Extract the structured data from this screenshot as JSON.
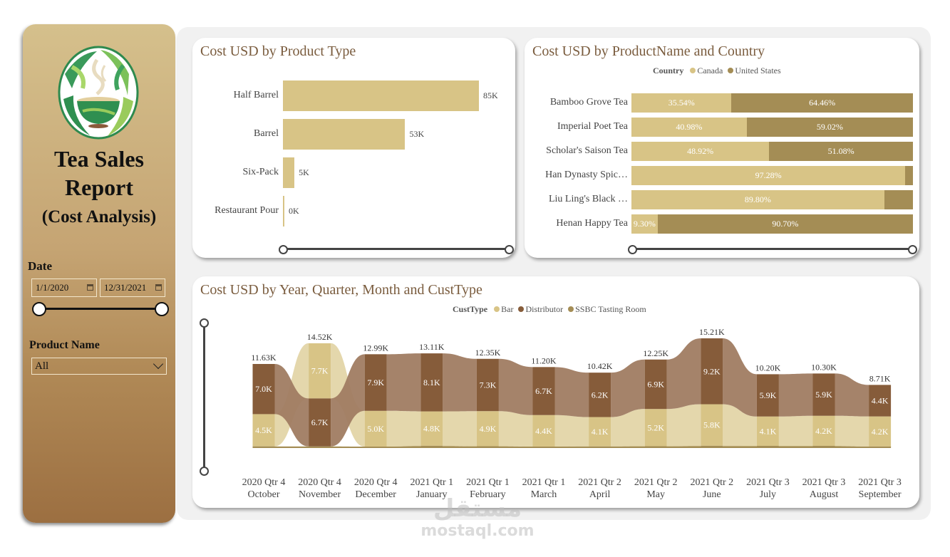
{
  "sidebar": {
    "title_line1": "Tea Sales",
    "title_line2": "Report",
    "title_line3": "(Cost Analysis)",
    "date_label": "Date",
    "date_start": "1/1/2020",
    "date_end": "12/31/2021",
    "product_label": "Product Name",
    "product_selected": "All"
  },
  "colors": {
    "bar": "#d8c486",
    "canada": "#d8c486",
    "united_states": "#a48d55",
    "cust_bar": "#d8c486",
    "cust_distributor": "#865c3a",
    "cust_ssbc": "#a48d55",
    "ribbon_bar": "#e3d5a8",
    "ribbon_distributor": "#a07c62",
    "ribbon_ssbc": "#b8a36a"
  },
  "chart_data": [
    {
      "type": "bar",
      "title": "Cost USD by Product Type",
      "orientation": "horizontal",
      "categories": [
        "Half Barrel",
        "Barrel",
        "Six-Pack",
        "Restaurant Pour"
      ],
      "values": [
        85,
        53,
        5,
        0.3
      ],
      "value_labels": [
        "85K",
        "53K",
        "5K",
        "0K"
      ],
      "units": "K USD",
      "xlim": [
        0,
        85
      ]
    },
    {
      "type": "bar",
      "stacked": "100%",
      "orientation": "horizontal",
      "title": "Cost USD by ProductName and Country",
      "legend_title": "Country",
      "legend": [
        "Canada",
        "United States"
      ],
      "legend_position": "top-center",
      "categories": [
        "Bamboo Grove Tea",
        "Imperial Poet Tea",
        "Scholar's Saison Tea",
        "Han Dynasty Spic…",
        "Liu Ling's Black …",
        "Henan Happy Tea"
      ],
      "series": [
        {
          "name": "Canada",
          "values": [
            35.54,
            40.98,
            48.92,
            97.28,
            89.8,
            9.3
          ],
          "labels": [
            "35.54%",
            "40.98%",
            "48.92%",
            "97.28%",
            "89.80%",
            "9.30%"
          ]
        },
        {
          "name": "United States",
          "values": [
            64.46,
            59.02,
            51.08,
            2.72,
            10.2,
            90.7
          ],
          "labels": [
            "64.46%",
            "59.02%",
            "51.08%",
            "",
            "",
            "90.70%"
          ]
        }
      ]
    },
    {
      "type": "area",
      "subtype": "ribbon",
      "title": "Cost USD by Year, Quarter, Month and CustType",
      "legend_title": "CustType",
      "legend": [
        "Bar",
        "Distributor",
        "SSBC Tasting Room"
      ],
      "legend_position": "top-center",
      "categories": [
        [
          "2020 Qtr 4",
          "October"
        ],
        [
          "2020 Qtr 4",
          "November"
        ],
        [
          "2020 Qtr 4",
          "December"
        ],
        [
          "2021 Qtr 1",
          "January"
        ],
        [
          "2021 Qtr 1",
          "February"
        ],
        [
          "2021 Qtr 1",
          "March"
        ],
        [
          "2021 Qtr 2",
          "April"
        ],
        [
          "2021 Qtr 2",
          "May"
        ],
        [
          "2021 Qtr 2",
          "June"
        ],
        [
          "2021 Qtr 3",
          "July"
        ],
        [
          "2021 Qtr 3",
          "August"
        ],
        [
          "2021 Qtr 3",
          "September"
        ]
      ],
      "totals": [
        11.63,
        14.52,
        12.99,
        13.11,
        12.35,
        11.2,
        10.42,
        12.25,
        15.21,
        10.2,
        10.3,
        8.71
      ],
      "total_labels": [
        "11.63K",
        "14.52K",
        "12.99K",
        "13.11K",
        "12.35K",
        "11.20K",
        "10.42K",
        "12.25K",
        "15.21K",
        "10.20K",
        "10.30K",
        "8.71K"
      ],
      "series": [
        {
          "name": "Bar",
          "values": [
            4.5,
            7.7,
            5.0,
            4.8,
            4.9,
            4.4,
            4.1,
            5.2,
            5.8,
            4.1,
            4.2,
            4.2
          ],
          "labels": [
            "4.5K",
            "7.7K",
            "5.0K",
            "4.8K",
            "4.9K",
            "4.4K",
            "4.1K",
            "5.2K",
            "5.8K",
            "4.1K",
            "4.2K",
            "4.2K"
          ]
        },
        {
          "name": "Distributor",
          "values": [
            7.0,
            6.7,
            7.9,
            8.1,
            7.3,
            6.7,
            6.2,
            6.9,
            9.2,
            5.9,
            5.9,
            4.4
          ],
          "labels": [
            "7.0K",
            "6.7K",
            "7.9K",
            "8.1K",
            "7.3K",
            "6.7K",
            "6.2K",
            "6.9K",
            "9.2K",
            "5.9K",
            "5.9K",
            "4.4K"
          ]
        },
        {
          "name": "SSBC Tasting Room",
          "values": [
            0.13,
            0.12,
            0.09,
            0.21,
            0.15,
            0.1,
            0.12,
            0.15,
            0.21,
            0.2,
            0.2,
            0.11
          ],
          "labels": []
        }
      ],
      "units": "K USD"
    }
  ],
  "watermark": {
    "line1": "مستقل",
    "line2": "mostaql.com"
  }
}
